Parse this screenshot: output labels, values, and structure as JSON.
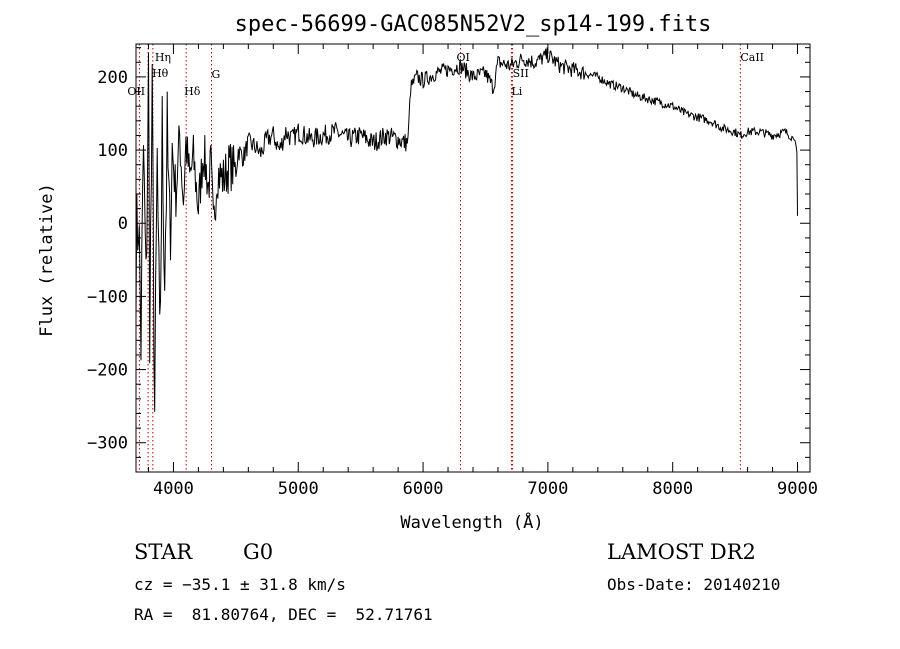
{
  "chart_data": {
    "type": "line",
    "title": "spec-56699-GAC085N52V2_sp14-199.fits",
    "xlabel": "Wavelength (Å)",
    "ylabel": "Flux (relative)",
    "xlim": [
      3700,
      9100
    ],
    "ylim": [
      -340,
      245
    ],
    "x_ticks": [
      4000,
      5000,
      6000,
      7000,
      8000,
      9000
    ],
    "y_ticks": [
      -300,
      -200,
      -100,
      0,
      100,
      200
    ],
    "x_tick_labels": [
      "4000",
      "5000",
      "6000",
      "7000",
      "8000",
      "9000"
    ],
    "y_tick_labels": [
      "−300",
      "−200",
      "−100",
      "0",
      "100",
      "200"
    ],
    "grid": false,
    "series": [
      {
        "x": [
          3700,
          3720,
          3740,
          3760,
          3780,
          3800,
          3810,
          3830,
          3850,
          3870,
          3890,
          3910,
          3930,
          3950,
          3970,
          3990,
          4020,
          4050,
          4080,
          4100,
          4130,
          4160,
          4200,
          4240,
          4280,
          4300,
          4320,
          4350,
          4400,
          4450,
          4500,
          4520,
          4560,
          4600,
          4650,
          4700,
          4750,
          4800,
          4850,
          4900,
          4950,
          5000,
          5100,
          5200,
          5300,
          5400,
          5500,
          5600,
          5700,
          5800,
          5850,
          5880,
          5900,
          5950,
          6000,
          6100,
          6200,
          6300,
          6400,
          6500,
          6563,
          6600,
          6700,
          6800,
          6900,
          7000,
          7100,
          7200,
          7300,
          7400,
          7500,
          7600,
          7700,
          7800,
          7900,
          8000,
          8100,
          8200,
          8300,
          8400,
          8500,
          8540,
          8600,
          8700,
          8800,
          8900,
          8980,
          8995,
          9000
        ],
        "y": [
          -50,
          20,
          -160,
          100,
          -100,
          200,
          -120,
          150,
          -260,
          80,
          -190,
          120,
          -60,
          110,
          -20,
          100,
          40,
          120,
          30,
          110,
          60,
          90,
          20,
          100,
          50,
          80,
          -10,
          70,
          60,
          80,
          70,
          100,
          90,
          110,
          105,
          95,
          115,
          120,
          100,
          125,
          115,
          125,
          115,
          120,
          125,
          115,
          120,
          110,
          120,
          115,
          110,
          112,
          185,
          200,
          195,
          205,
          210,
          215,
          200,
          205,
          185,
          220,
          215,
          225,
          220,
          230,
          215,
          210,
          205,
          200,
          190,
          185,
          175,
          170,
          165,
          160,
          150,
          145,
          140,
          130,
          125,
          120,
          125,
          125,
          120,
          125,
          115,
          95,
          10
        ]
      }
    ],
    "spectral_lines": [
      {
        "name": "OII",
        "x": 3727
      },
      {
        "name": "Hη",
        "x": 3835
      },
      {
        "name": "Hθ",
        "x": 3797
      },
      {
        "name": "Hδ",
        "x": 4102
      },
      {
        "name": "G",
        "x": 4305
      },
      {
        "name": "OI",
        "x": 6300
      },
      {
        "name": "SII",
        "x": 6717
      },
      {
        "name": "Li",
        "x": 6708
      },
      {
        "name": "CaII",
        "x": 8542
      }
    ],
    "line_color": "#c00000"
  },
  "info": {
    "obj_class": "STAR",
    "subclass": "G0",
    "survey": "LAMOST DR2",
    "cz": "cz = −35.1 ± 31.8 km/s",
    "obs_date": "Obs-Date: 20140210",
    "coords": "RA =  81.80764, DEC =  52.71761"
  }
}
